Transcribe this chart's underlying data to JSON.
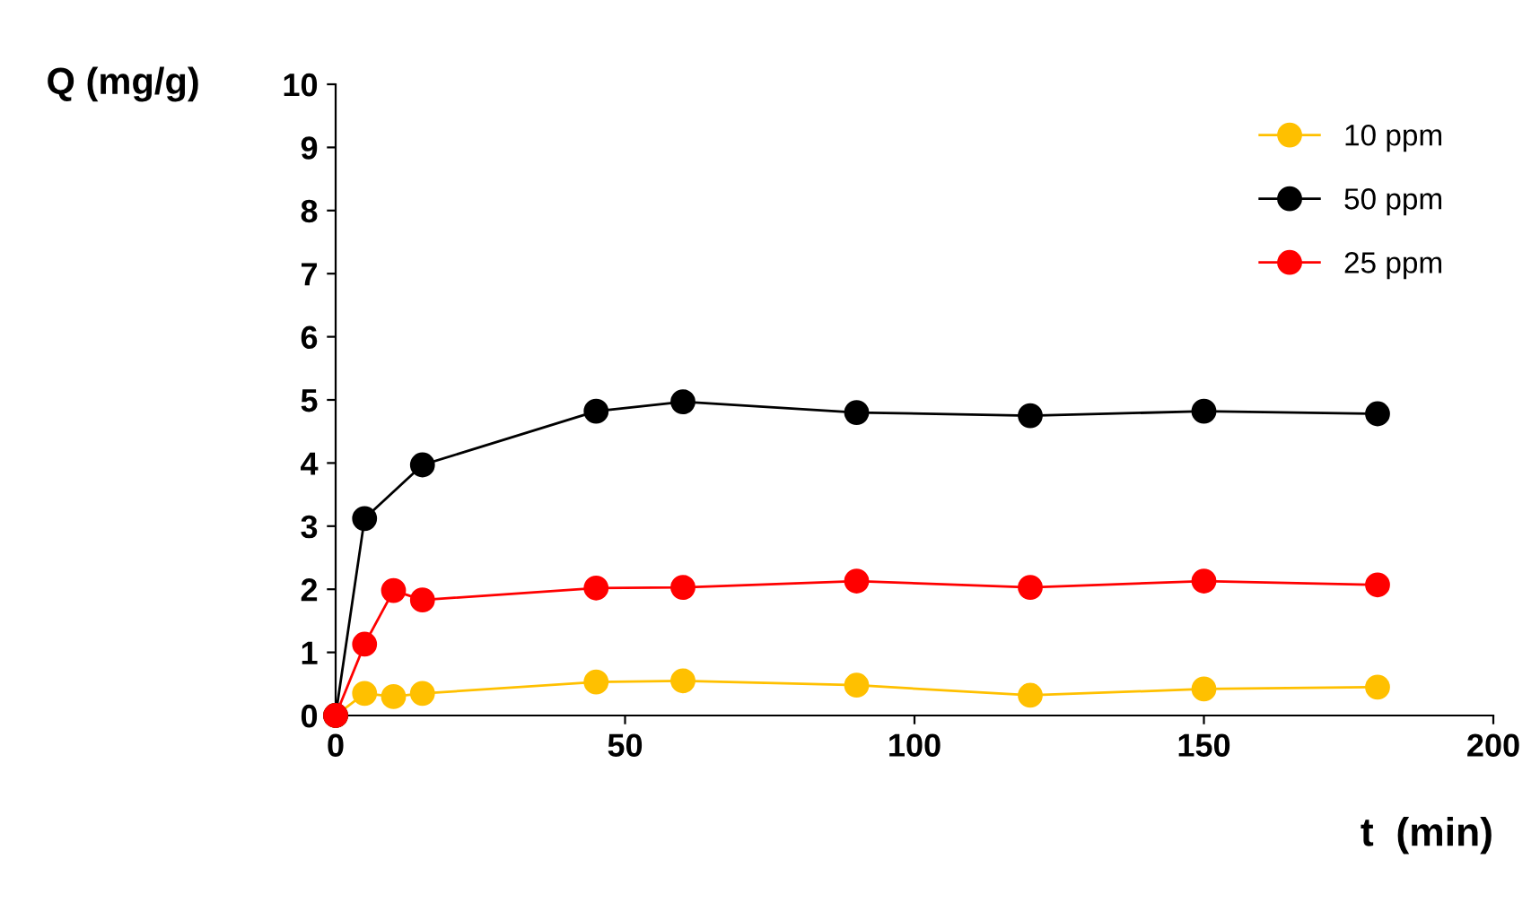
{
  "chart_data": {
    "type": "line",
    "ylabel": "Q (mg/g)",
    "xlabel": "t  (min)",
    "xlim": [
      0,
      200
    ],
    "xticks": [
      0,
      50,
      100,
      150,
      200
    ],
    "ylim": [
      0,
      10
    ],
    "yticks": [
      0,
      1,
      2,
      3,
      4,
      5,
      6,
      7,
      8,
      9,
      10
    ],
    "grid": false,
    "legend": "top right",
    "marker": "circle",
    "line_style": "solid",
    "series": [
      {
        "name": "10 ppm",
        "color": "#ffc000",
        "x": [
          0,
          5,
          10,
          15,
          45,
          60,
          90,
          120,
          150,
          180
        ],
        "values": [
          0,
          0.35,
          0.3,
          0.35,
          0.53,
          0.55,
          0.48,
          0.32,
          0.42,
          0.45
        ]
      },
      {
        "name": "50 ppm",
        "color": "#000000",
        "x": [
          0,
          5,
          15,
          45,
          60,
          90,
          120,
          150,
          180
        ],
        "values": [
          0,
          3.12,
          3.97,
          4.82,
          4.97,
          4.8,
          4.75,
          4.82,
          4.78
        ]
      },
      {
        "name": "25 ppm",
        "color": "#ff0000",
        "x": [
          0,
          5,
          10,
          15,
          45,
          60,
          90,
          120,
          150,
          180
        ],
        "values": [
          0,
          1.13,
          1.98,
          1.83,
          2.02,
          2.03,
          2.13,
          2.03,
          2.13,
          2.07
        ]
      }
    ]
  }
}
